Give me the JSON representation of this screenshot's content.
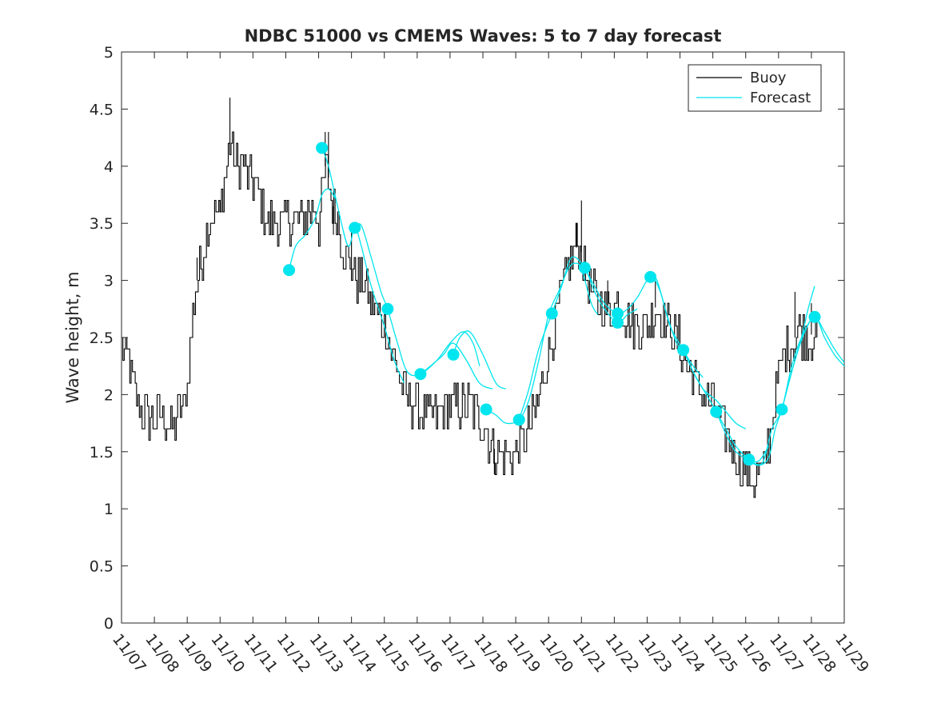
{
  "chart_data": {
    "type": "line",
    "title": "NDBC 51000 vs CMEMS Waves: 5 to 7 day forecast",
    "xlabel": "",
    "ylabel": "Wave height, m",
    "xlim": [
      0,
      22
    ],
    "ylim": [
      0,
      5
    ],
    "x_ticks": [
      0,
      1,
      2,
      3,
      4,
      5,
      6,
      7,
      8,
      9,
      10,
      11,
      12,
      13,
      14,
      15,
      16,
      17,
      18,
      19,
      20,
      21,
      22
    ],
    "x_tick_labels": [
      "11/07",
      "11/08",
      "11/09",
      "11/10",
      "11/11",
      "11/12",
      "11/13",
      "11/14",
      "11/15",
      "11/16",
      "11/17",
      "11/18",
      "11/19",
      "11/20",
      "11/21",
      "11/22",
      "11/23",
      "11/24",
      "11/25",
      "11/26",
      "11/27",
      "11/28",
      "11/29"
    ],
    "y_ticks": [
      0,
      0.5,
      1,
      1.5,
      2,
      2.5,
      3,
      3.5,
      4,
      4.5,
      5
    ],
    "y_tick_labels": [
      "0",
      "0.5",
      "1",
      "1.5",
      "2",
      "2.5",
      "3",
      "3.5",
      "4",
      "4.5",
      "5"
    ],
    "legend": {
      "placement": "top-right",
      "entries": [
        {
          "label": "Buoy",
          "color": "#000000"
        },
        {
          "label": "Forecast",
          "color": "#00e5ee"
        }
      ]
    },
    "series": [
      {
        "name": "Buoy",
        "color": "#000000",
        "kind": "noisy-line",
        "points": [
          [
            0,
            2.4
          ],
          [
            0.2,
            2.3
          ],
          [
            0.3,
            2.1
          ],
          [
            0.5,
            1.9
          ],
          [
            0.8,
            1.8
          ],
          [
            1.0,
            1.8
          ],
          [
            1.3,
            1.8
          ],
          [
            1.5,
            1.7
          ],
          [
            1.7,
            1.8
          ],
          [
            1.9,
            1.9
          ],
          [
            2.0,
            2.1
          ],
          [
            2.1,
            2.5
          ],
          [
            2.2,
            2.8
          ],
          [
            2.3,
            3.0
          ],
          [
            2.4,
            3.1
          ],
          [
            2.5,
            3.3
          ],
          [
            2.6,
            3.5
          ],
          [
            2.8,
            3.6
          ],
          [
            3.0,
            3.6
          ],
          [
            3.1,
            3.9
          ],
          [
            3.2,
            4.0
          ],
          [
            3.3,
            4.2
          ],
          [
            3.4,
            4.1
          ],
          [
            3.5,
            4.0
          ],
          [
            3.7,
            4.0
          ],
          [
            3.9,
            3.9
          ],
          [
            4.1,
            3.8
          ],
          [
            4.3,
            3.6
          ],
          [
            4.5,
            3.5
          ],
          [
            4.7,
            3.5
          ],
          [
            4.9,
            3.5
          ],
          [
            5.1,
            3.55
          ],
          [
            5.3,
            3.5
          ],
          [
            5.5,
            3.5
          ],
          [
            5.7,
            3.6
          ],
          [
            5.9,
            3.65
          ],
          [
            6.0,
            3.5
          ],
          [
            6.1,
            3.8
          ],
          [
            6.2,
            4.0
          ],
          [
            6.3,
            3.9
          ],
          [
            6.4,
            3.7
          ],
          [
            6.5,
            3.6
          ],
          [
            6.6,
            3.5
          ],
          [
            6.8,
            3.2
          ],
          [
            7.0,
            3.1
          ],
          [
            7.2,
            3.0
          ],
          [
            7.4,
            2.95
          ],
          [
            7.6,
            2.8
          ],
          [
            7.8,
            2.7
          ],
          [
            8.0,
            2.6
          ],
          [
            8.2,
            2.4
          ],
          [
            8.4,
            2.2
          ],
          [
            8.6,
            2.0
          ],
          [
            8.8,
            1.95
          ],
          [
            9.0,
            1.9
          ],
          [
            9.2,
            1.85
          ],
          [
            9.5,
            1.8
          ],
          [
            9.8,
            1.85
          ],
          [
            10.0,
            1.9
          ],
          [
            10.3,
            1.9
          ],
          [
            10.6,
            1.9
          ],
          [
            10.9,
            1.8
          ],
          [
            11.0,
            1.75
          ],
          [
            11.2,
            1.6
          ],
          [
            11.4,
            1.5
          ],
          [
            11.6,
            1.45
          ],
          [
            11.8,
            1.5
          ],
          [
            12.0,
            1.5
          ],
          [
            12.2,
            1.6
          ],
          [
            12.4,
            1.7
          ],
          [
            12.6,
            1.85
          ],
          [
            12.8,
            2.1
          ],
          [
            13.0,
            2.4
          ],
          [
            13.2,
            2.6
          ],
          [
            13.4,
            2.9
          ],
          [
            13.6,
            3.1
          ],
          [
            13.8,
            3.3
          ],
          [
            14.0,
            3.25
          ],
          [
            14.1,
            3.1
          ],
          [
            14.3,
            2.9
          ],
          [
            14.5,
            2.8
          ],
          [
            14.7,
            2.75
          ],
          [
            14.9,
            2.7
          ],
          [
            15.1,
            2.8
          ],
          [
            15.3,
            2.7
          ],
          [
            15.5,
            2.65
          ],
          [
            15.7,
            2.6
          ],
          [
            15.9,
            2.6
          ],
          [
            16.1,
            2.65
          ],
          [
            16.3,
            2.8
          ],
          [
            16.5,
            2.65
          ],
          [
            16.7,
            2.6
          ],
          [
            16.9,
            2.5
          ],
          [
            17.1,
            2.35
          ],
          [
            17.3,
            2.2
          ],
          [
            17.5,
            2.1
          ],
          [
            17.7,
            2.0
          ],
          [
            17.9,
            1.95
          ],
          [
            18.1,
            1.85
          ],
          [
            18.3,
            1.7
          ],
          [
            18.5,
            1.6
          ],
          [
            18.7,
            1.45
          ],
          [
            18.9,
            1.35
          ],
          [
            19.1,
            1.3
          ],
          [
            19.3,
            1.25
          ],
          [
            19.5,
            1.3
          ],
          [
            19.7,
            1.6
          ],
          [
            19.9,
            2.0
          ],
          [
            20.1,
            2.3
          ],
          [
            20.3,
            2.4
          ],
          [
            20.5,
            2.5
          ],
          [
            20.7,
            2.55
          ],
          [
            20.9,
            2.5
          ],
          [
            21.1,
            2.55
          ],
          [
            21.2,
            2.4
          ]
        ],
        "spikes": [
          [
            3.3,
            4.6
          ],
          [
            3.0,
            3.7
          ],
          [
            6.2,
            4.3
          ],
          [
            6.3,
            4.3
          ],
          [
            14.0,
            3.7
          ],
          [
            13.85,
            3.5
          ],
          [
            16.25,
            3.0
          ],
          [
            11.35,
            1.3
          ],
          [
            2.3,
            3.2
          ],
          [
            6.45,
            3.4
          ],
          [
            7.0,
            3.5
          ],
          [
            14.8,
            3.0
          ],
          [
            21.0,
            2.8
          ],
          [
            20.5,
            2.9
          ]
        ]
      },
      {
        "name": "Forecast",
        "color": "#00e5ee",
        "kind": "line-with-markers",
        "segments": [
          [
            [
              5.1,
              3.09
            ],
            [
              5.3,
              3.3
            ],
            [
              5.6,
              3.4
            ],
            [
              5.9,
              3.55
            ],
            [
              6.1,
              3.75
            ],
            [
              6.3,
              3.8
            ],
            [
              6.5,
              3.72
            ]
          ],
          [
            [
              6.1,
              4.16
            ],
            [
              6.3,
              4.0
            ],
            [
              6.6,
              3.62
            ],
            [
              6.9,
              3.3
            ],
            [
              7.1,
              3.46
            ],
            [
              7.3,
              3.3
            ],
            [
              7.6,
              2.95
            ],
            [
              8.0,
              2.6
            ],
            [
              8.3,
              2.3
            ],
            [
              8.6,
              2.1
            ]
          ],
          [
            [
              7.1,
              3.46
            ],
            [
              7.3,
              3.48
            ],
            [
              7.6,
              3.2
            ],
            [
              7.9,
              2.9
            ],
            [
              8.1,
              2.75
            ],
            [
              8.4,
              2.45
            ],
            [
              8.7,
              2.2
            ],
            [
              9.1,
              2.18
            ],
            [
              9.6,
              2.3
            ],
            [
              10.0,
              2.45
            ],
            [
              10.4,
              2.55
            ],
            [
              10.7,
              2.45
            ],
            [
              10.9,
              2.25
            ]
          ],
          [
            [
              9.1,
              2.18
            ],
            [
              9.4,
              2.25
            ],
            [
              9.8,
              2.35
            ],
            [
              10.1,
              2.45
            ],
            [
              10.5,
              2.3
            ],
            [
              10.9,
              2.1
            ],
            [
              11.3,
              2.05
            ]
          ],
          [
            [
              10.1,
              2.35
            ],
            [
              10.3,
              2.5
            ],
            [
              10.6,
              2.55
            ],
            [
              11.0,
              2.35
            ],
            [
              11.4,
              2.1
            ],
            [
              11.7,
              2.05
            ]
          ],
          [
            [
              11.1,
              1.87
            ],
            [
              11.4,
              1.82
            ],
            [
              11.7,
              1.75
            ],
            [
              12.1,
              1.78
            ],
            [
              12.4,
              1.95
            ],
            [
              12.7,
              2.3
            ],
            [
              13.0,
              2.7
            ],
            [
              13.3,
              2.9
            ],
            [
              13.6,
              3.1
            ],
            [
              13.8,
              3.15
            ],
            [
              14.0,
              3.1
            ],
            [
              14.3,
              2.8
            ],
            [
              14.5,
              2.7
            ]
          ],
          [
            [
              12.1,
              1.78
            ],
            [
              12.4,
              2.05
            ],
            [
              12.7,
              2.4
            ],
            [
              13.1,
              2.71
            ],
            [
              13.4,
              2.95
            ],
            [
              13.7,
              3.2
            ],
            [
              14.1,
              3.11
            ],
            [
              14.4,
              2.9
            ],
            [
              14.7,
              2.75
            ],
            [
              15.1,
              2.63
            ],
            [
              15.4,
              2.7
            ],
            [
              15.7,
              2.75
            ]
          ],
          [
            [
              14.1,
              3.11
            ],
            [
              14.4,
              2.95
            ],
            [
              14.7,
              2.8
            ],
            [
              15.1,
              2.71
            ],
            [
              15.4,
              2.75
            ],
            [
              15.7,
              2.85
            ],
            [
              16.1,
              3.03
            ],
            [
              16.4,
              2.9
            ],
            [
              16.7,
              2.6
            ],
            [
              17.1,
              2.39
            ],
            [
              17.4,
              2.25
            ],
            [
              17.7,
              2.15
            ]
          ],
          [
            [
              16.1,
              3.03
            ],
            [
              16.3,
              3.0
            ],
            [
              16.6,
              2.7
            ],
            [
              16.9,
              2.45
            ],
            [
              17.1,
              2.39
            ],
            [
              17.4,
              2.2
            ],
            [
              17.7,
              2.05
            ],
            [
              18.1,
              1.85
            ],
            [
              18.4,
              1.65
            ],
            [
              18.7,
              1.5
            ],
            [
              19.1,
              1.43
            ],
            [
              19.4,
              1.42
            ],
            [
              19.7,
              1.55
            ]
          ],
          [
            [
              17.1,
              2.39
            ],
            [
              17.4,
              2.2
            ],
            [
              17.7,
              2.05
            ],
            [
              18.1,
              1.95
            ],
            [
              18.4,
              1.85
            ],
            [
              18.7,
              1.75
            ],
            [
              19.0,
              1.7
            ]
          ],
          [
            [
              18.1,
              1.85
            ],
            [
              18.4,
              1.7
            ],
            [
              18.7,
              1.55
            ],
            [
              19.1,
              1.43
            ],
            [
              19.4,
              1.38
            ],
            [
              19.7,
              1.45
            ],
            [
              19.9,
              1.7
            ],
            [
              20.1,
              1.87
            ],
            [
              20.4,
              2.2
            ],
            [
              20.7,
              2.5
            ],
            [
              20.9,
              2.75
            ],
            [
              21.1,
              2.95
            ]
          ],
          [
            [
              19.1,
              1.43
            ],
            [
              19.5,
              1.4
            ],
            [
              19.8,
              1.7
            ],
            [
              20.1,
              1.87
            ],
            [
              20.4,
              2.25
            ],
            [
              20.7,
              2.5
            ],
            [
              21.1,
              2.68
            ],
            [
              21.4,
              2.5
            ],
            [
              21.7,
              2.35
            ],
            [
              22.0,
              2.25
            ]
          ],
          [
            [
              20.1,
              1.87
            ],
            [
              20.5,
              2.3
            ],
            [
              20.8,
              2.55
            ],
            [
              21.1,
              2.68
            ],
            [
              21.4,
              2.55
            ],
            [
              21.7,
              2.4
            ],
            [
              22.0,
              2.28
            ]
          ]
        ],
        "markers": [
          [
            5.1,
            3.09
          ],
          [
            6.1,
            4.16
          ],
          [
            7.1,
            3.46
          ],
          [
            8.1,
            2.75
          ],
          [
            9.1,
            2.18
          ],
          [
            10.1,
            2.35
          ],
          [
            11.1,
            1.87
          ],
          [
            12.1,
            1.78
          ],
          [
            13.1,
            2.71
          ],
          [
            14.1,
            3.11
          ],
          [
            15.1,
            2.63
          ],
          [
            15.1,
            2.71
          ],
          [
            16.1,
            3.03
          ],
          [
            17.1,
            2.39
          ],
          [
            18.1,
            1.85
          ],
          [
            19.1,
            1.43
          ],
          [
            20.1,
            1.87
          ],
          [
            21.1,
            2.68
          ]
        ]
      }
    ]
  }
}
